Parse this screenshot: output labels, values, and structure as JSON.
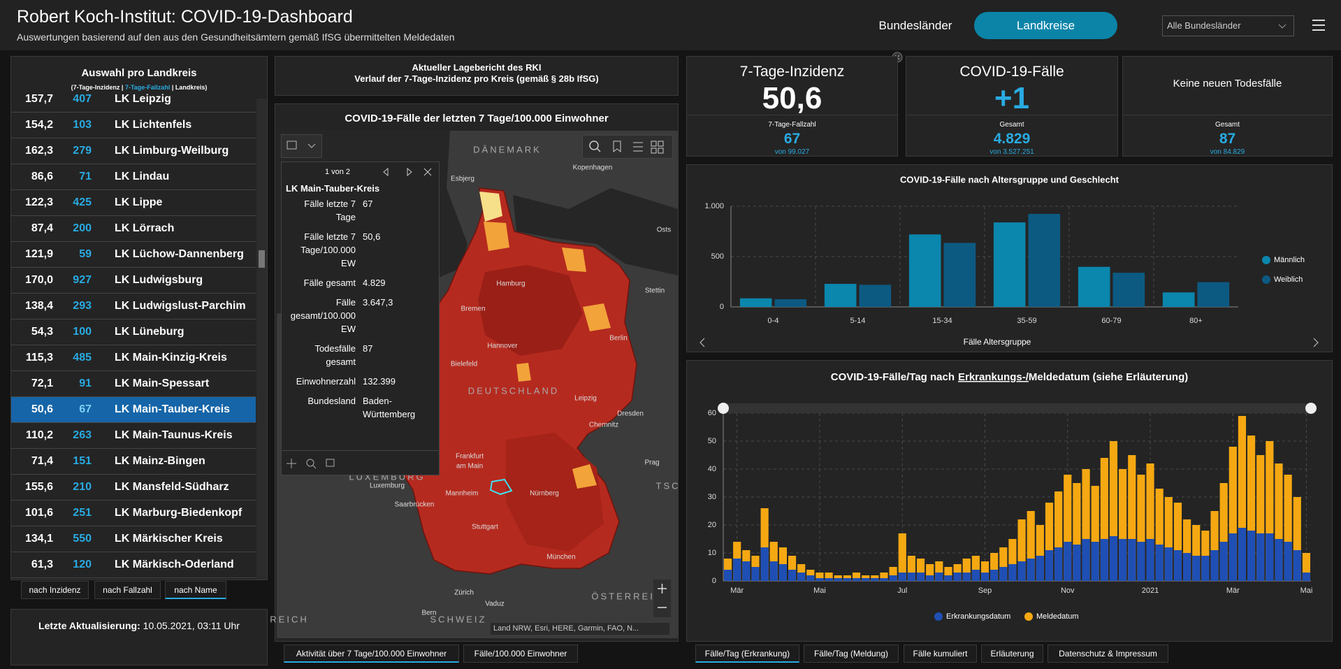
{
  "header": {
    "title": "Robert Koch-Institut: COVID-19-Dashboard",
    "subtitle": "Auswertungen basierend auf den aus den Gesundheitsämtern gemäß IfSG übermittelten Meldedaten",
    "buttons": [
      "Bundesländer",
      "Landkreise"
    ],
    "dropdown": "Alle Bundesländer"
  },
  "district_list": {
    "title": "Auswahl pro Landkreis",
    "legend": [
      "(7-Tage-Inzidenz |",
      "7-Tage-Fallzahl",
      "| Landkreis)"
    ],
    "rows": [
      [
        "157,7",
        "407",
        "LK Leipzig"
      ],
      [
        "154,2",
        "103",
        "LK Lichtenfels"
      ],
      [
        "162,3",
        "279",
        "LK Limburg-Weilburg"
      ],
      [
        "86,6",
        "71",
        "LK Lindau"
      ],
      [
        "122,3",
        "425",
        "LK Lippe"
      ],
      [
        "87,4",
        "200",
        "LK Lörrach"
      ],
      [
        "121,9",
        "59",
        "LK Lüchow-Dannenberg"
      ],
      [
        "170,0",
        "927",
        "LK Ludwigsburg"
      ],
      [
        "138,4",
        "293",
        "LK Ludwigslust-Parchim"
      ],
      [
        "54,3",
        "100",
        "LK Lüneburg"
      ],
      [
        "115,3",
        "485",
        "LK Main-Kinzig-Kreis"
      ],
      [
        "72,1",
        "91",
        "LK Main-Spessart"
      ],
      [
        "50,6",
        "67",
        "LK Main-Tauber-Kreis"
      ],
      [
        "110,2",
        "263",
        "LK Main-Taunus-Kreis"
      ],
      [
        "71,4",
        "151",
        "LK Mainz-Bingen"
      ],
      [
        "155,6",
        "210",
        "LK Mansfeld-Südharz"
      ],
      [
        "101,6",
        "251",
        "LK Marburg-Biedenkopf"
      ],
      [
        "134,1",
        "550",
        "LK Märkischer Kreis"
      ],
      [
        "61,3",
        "120",
        "LK Märkisch-Oderland"
      ]
    ],
    "sort_tabs": [
      "nach Inzidenz",
      "nach Fallzahl",
      "nach Name"
    ],
    "update_label": "Letzte Aktualisierung:",
    "update_value": "10.05.2021, 03:11 Uhr"
  },
  "report": {
    "title": "Aktueller Lagebericht des RKI",
    "subtitle": "Verlauf der 7-Tage-Inzidenz pro Kreis (gemäß § 28b IfSG)"
  },
  "map": {
    "title": "COVID-19-Fälle der letzten 7 Tage/100.000 Einwohner",
    "labels": [
      "DÄNEMARK",
      "Esbjerg",
      "Kopenhagen",
      "Osts",
      "Hamburg",
      "Bremen",
      "Stettin",
      "Hannover",
      "Berlin",
      "Bielefeld",
      "DEUTSCHLAND",
      "Leipzig",
      "Chemnitz",
      "Dresden",
      "Frankfurt",
      "am Main",
      "Prag",
      "LUXEMBURG",
      "Luxemburg",
      "TSC",
      "Mannheim",
      "Nürnberg",
      "Saarbrücken",
      "Stuttgart",
      "München",
      "Zürich",
      "ÖSTERREICH",
      "Vaduz",
      "Bern",
      "SCHWEIZ",
      "REICH"
    ],
    "attribution": "Land NRW, Esri, HERE, Garmin, FAO, N...",
    "popup": {
      "pager": "1 von 2",
      "title": "LK Main-Tauber-Kreis",
      "fields": [
        [
          "Fälle letzte 7 Tage",
          "67"
        ],
        [
          "Fälle letzte 7 Tage/100.000 EW",
          "50,6"
        ],
        [
          "Fälle gesamt",
          "4.829"
        ],
        [
          "Fälle gesamt/100.000 EW",
          "3.647,3"
        ],
        [
          "Todesfälle gesamt",
          "87"
        ],
        [
          "Einwohnerzahl",
          "132.399"
        ],
        [
          "Bundesland",
          "Baden-Württemberg"
        ]
      ]
    },
    "tabs": [
      "Aktivität über 7 Tage/100.000 Einwohner",
      "Fälle/100.000 Einwohner"
    ]
  },
  "kpis": [
    {
      "title": "7-Tage-Inzidenz",
      "value": "50,6",
      "sub_label": "7-Tage-Fallzahl",
      "sub_value": "67",
      "sub_total": "von 99.027"
    },
    {
      "title": "COVID-19-Fälle",
      "value": "+1",
      "sub_label": "Gesamt",
      "sub_value": "4.829",
      "sub_total": "von 3.527.251"
    },
    {
      "title": "Keine neuen Todesfälle",
      "sub_label": "Gesamt",
      "sub_value": "87",
      "sub_total": "von 84.829"
    }
  ],
  "chart_data": [
    {
      "type": "bar",
      "barmode": "group",
      "title": "COVID-19-Fälle nach Altersgruppe und Geschlecht",
      "x_label": "Fälle Altersgruppe",
      "categories": [
        "0-4",
        "5-14",
        "15-34",
        "35-59",
        "60-79",
        "80+"
      ],
      "series": [
        {
          "name": "Männlich",
          "color": "#0b86ad",
          "values": [
            85,
            229,
            720,
            839,
            398,
            144
          ]
        },
        {
          "name": "Weiblich",
          "color": "#0c5a82",
          "values": [
            76,
            220,
            636,
            924,
            339,
            246
          ]
        }
      ],
      "ylim": [
        0,
        1000
      ],
      "yticks": [
        0,
        500,
        {
          "value": 1000,
          "label": "1.000"
        }
      ],
      "grid": true,
      "legend": "right"
    },
    {
      "type": "bar",
      "barmode": "overlay",
      "title": [
        "COVID-19-Fälle/Tag nach",
        "Erkrankungs-/",
        "Meldedatum (siehe Erläuterung)"
      ],
      "categories": [
        null,
        "Mär",
        null,
        null,
        null,
        null,
        null,
        null,
        null,
        null,
        "Mai",
        null,
        null,
        null,
        null,
        null,
        null,
        null,
        null,
        "Jul",
        null,
        null,
        null,
        null,
        null,
        null,
        null,
        null,
        "Sep",
        null,
        null,
        null,
        null,
        null,
        null,
        null,
        null,
        "Nov",
        null,
        null,
        null,
        null,
        null,
        null,
        null,
        null,
        "2021",
        null,
        null,
        null,
        null,
        null,
        null,
        null,
        null,
        "Mär",
        null,
        null,
        null,
        null,
        null,
        null,
        null,
        "Mai"
      ],
      "series": [
        {
          "name": "Erkrankungsdatum",
          "color": "#1f4fb4",
          "values": [
            4,
            8,
            7,
            5,
            12,
            7,
            6,
            4,
            3,
            2,
            1,
            1,
            1,
            1,
            1,
            1,
            1,
            1,
            2,
            3,
            3,
            3,
            2,
            3,
            2,
            3,
            3,
            4,
            3,
            4,
            5,
            6,
            7,
            8,
            9,
            11,
            12,
            14,
            13,
            15,
            14,
            15,
            16,
            15,
            15,
            14,
            15,
            13,
            12,
            11,
            10,
            9,
            9,
            11,
            14,
            17,
            19,
            18,
            17,
            17,
            15,
            14,
            11,
            3
          ]
        },
        {
          "name": "Meldedatum",
          "color": "#f5a812",
          "values": [
            8,
            14,
            11,
            9,
            26,
            14,
            12,
            9,
            6,
            4,
            3,
            3,
            2,
            2,
            3,
            2,
            2,
            3,
            5,
            17,
            9,
            8,
            6,
            7,
            5,
            6,
            8,
            9,
            7,
            10,
            12,
            15,
            22,
            25,
            20,
            28,
            32,
            38,
            35,
            40,
            34,
            44,
            50,
            40,
            45,
            38,
            42,
            33,
            30,
            28,
            22,
            20,
            18,
            25,
            35,
            48,
            59,
            52,
            45,
            50,
            42,
            38,
            30,
            10
          ]
        }
      ],
      "ylim": [
        0,
        60
      ],
      "yticks": [
        0,
        10,
        20,
        30,
        40,
        50,
        60
      ],
      "grid": true,
      "legend": "bottom"
    }
  ],
  "chart_tabs": [
    "Fälle/Tag (Erkrankung)",
    "Fälle/Tag (Meldung)",
    "Fälle kumuliert",
    "Erläuterung",
    "Datenschutz & Impressum"
  ]
}
